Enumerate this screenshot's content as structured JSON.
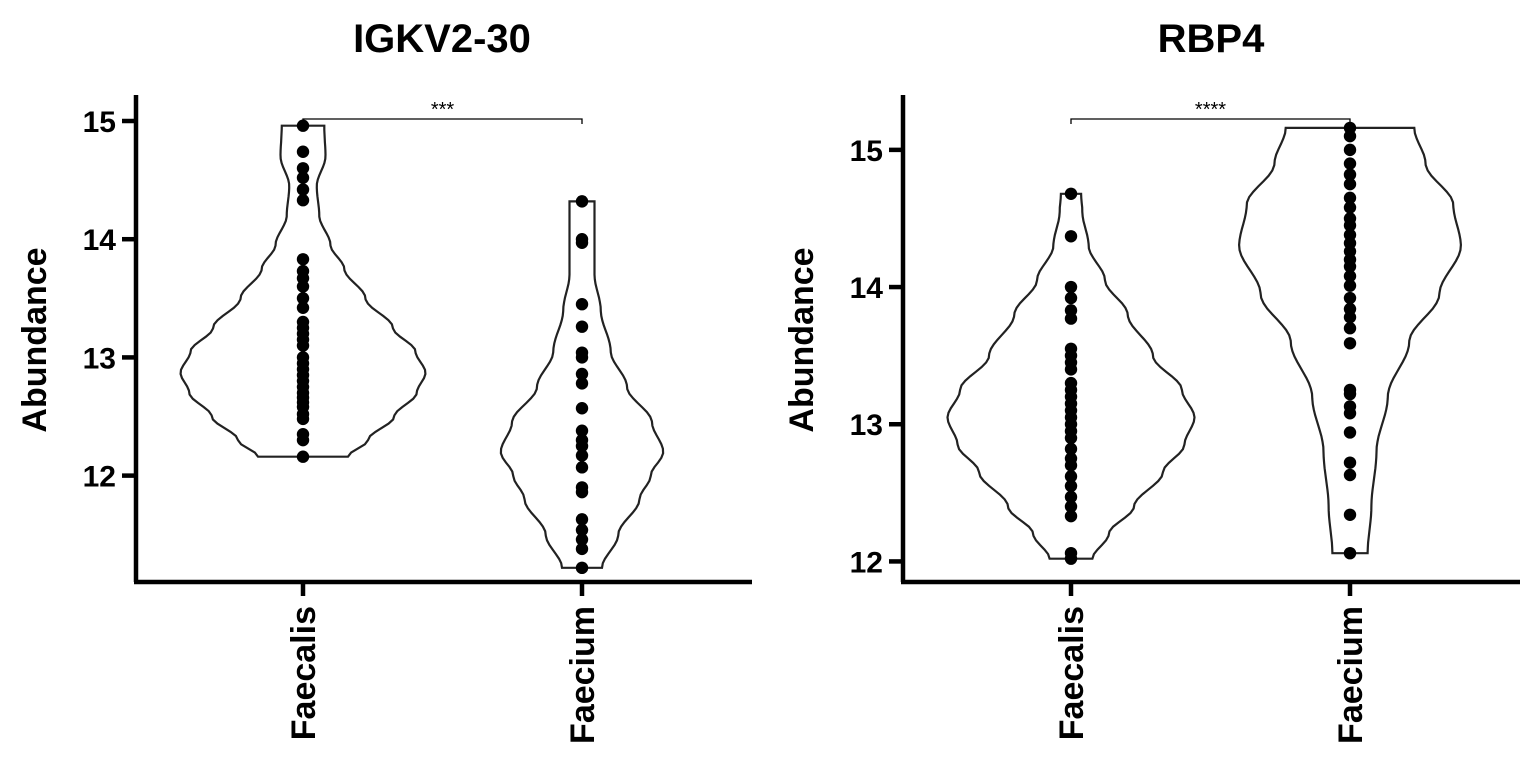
{
  "chart_data": [
    {
      "type": "violin",
      "title": "IGKV2-30",
      "ylabel": "Abundance",
      "categories": [
        "Faecalis",
        "Faecium"
      ],
      "ylim": [
        11.1,
        15.22
      ],
      "yticks": [
        12,
        13,
        14,
        15
      ],
      "significance": {
        "from": "Faecalis",
        "to": "Faecium",
        "label": "***"
      },
      "series": [
        {
          "category": "Faecalis",
          "range": [
            12.16,
            14.96
          ],
          "density": [
            [
              12.16,
              0.36
            ],
            [
              12.3,
              0.52
            ],
            [
              12.5,
              0.73
            ],
            [
              12.7,
              0.91
            ],
            [
              12.87,
              0.98
            ],
            [
              13.05,
              0.9
            ],
            [
              13.25,
              0.72
            ],
            [
              13.5,
              0.5
            ],
            [
              13.75,
              0.33
            ],
            [
              13.95,
              0.22
            ],
            [
              14.2,
              0.13
            ],
            [
              14.45,
              0.11
            ],
            [
              14.7,
              0.18
            ],
            [
              14.96,
              0.17
            ]
          ],
          "values": [
            12.16,
            12.3,
            12.35,
            12.48,
            12.52,
            12.58,
            12.62,
            12.66,
            12.7,
            12.75,
            12.8,
            12.85,
            12.9,
            12.95,
            13.0,
            13.1,
            13.15,
            13.2,
            13.25,
            13.3,
            13.42,
            13.5,
            13.6,
            13.67,
            13.73,
            13.83,
            14.33,
            14.42,
            14.52,
            14.6,
            14.74,
            14.96
          ]
        },
        {
          "category": "Faecium",
          "range": [
            11.22,
            14.32
          ],
          "density": [
            [
              11.22,
              0.16
            ],
            [
              11.5,
              0.29
            ],
            [
              11.8,
              0.46
            ],
            [
              12.0,
              0.55
            ],
            [
              12.2,
              0.65
            ],
            [
              12.45,
              0.56
            ],
            [
              12.75,
              0.36
            ],
            [
              13.05,
              0.23
            ],
            [
              13.4,
              0.15
            ],
            [
              13.7,
              0.1
            ],
            [
              14.0,
              0.1
            ],
            [
              14.32,
              0.1
            ]
          ],
          "values": [
            11.22,
            11.38,
            11.46,
            11.54,
            11.63,
            11.86,
            11.9,
            12.07,
            12.17,
            12.25,
            12.3,
            12.38,
            12.57,
            12.78,
            12.86,
            13.0,
            13.04,
            13.26,
            13.45,
            13.97,
            14.0,
            14.32
          ]
        }
      ]
    },
    {
      "type": "violin",
      "title": "RBP4",
      "ylabel": "Abundance",
      "categories": [
        "Faecalis",
        "Faecium"
      ],
      "ylim": [
        11.85,
        15.4
      ],
      "yticks": [
        12,
        13,
        14,
        15
      ],
      "significance": {
        "from": "Faecalis",
        "to": "Faecium",
        "label": "****"
      },
      "series": [
        {
          "category": "Faecalis",
          "range": [
            12.02,
            14.68
          ],
          "density": [
            [
              12.02,
              0.17
            ],
            [
              12.2,
              0.3
            ],
            [
              12.4,
              0.5
            ],
            [
              12.65,
              0.73
            ],
            [
              12.85,
              0.9
            ],
            [
              13.05,
              0.98
            ],
            [
              13.25,
              0.88
            ],
            [
              13.5,
              0.65
            ],
            [
              13.8,
              0.45
            ],
            [
              14.05,
              0.27
            ],
            [
              14.3,
              0.14
            ],
            [
              14.55,
              0.09
            ],
            [
              14.68,
              0.08
            ]
          ],
          "values": [
            12.02,
            12.06,
            12.33,
            12.4,
            12.47,
            12.55,
            12.62,
            12.7,
            12.75,
            12.82,
            12.9,
            12.95,
            13.0,
            13.05,
            13.1,
            13.15,
            13.2,
            13.25,
            13.3,
            13.4,
            13.45,
            13.5,
            13.55,
            13.77,
            13.83,
            13.92,
            14.0,
            14.37,
            14.68
          ]
        },
        {
          "category": "Faecium",
          "range": [
            12.06,
            15.16
          ],
          "density": [
            [
              12.06,
              0.14
            ],
            [
              12.4,
              0.17
            ],
            [
              12.8,
              0.21
            ],
            [
              13.2,
              0.3
            ],
            [
              13.6,
              0.47
            ],
            [
              13.95,
              0.71
            ],
            [
              14.3,
              0.88
            ],
            [
              14.6,
              0.82
            ],
            [
              14.9,
              0.6
            ],
            [
              15.16,
              0.51
            ]
          ],
          "values": [
            12.06,
            12.34,
            12.63,
            12.72,
            12.94,
            13.08,
            13.13,
            13.22,
            13.25,
            13.59,
            13.7,
            13.78,
            13.84,
            13.92,
            14.01,
            14.08,
            14.15,
            14.2,
            14.26,
            14.32,
            14.38,
            14.45,
            14.5,
            14.58,
            14.65,
            14.75,
            14.82,
            14.9,
            15.0,
            15.1,
            15.16
          ]
        }
      ]
    }
  ]
}
